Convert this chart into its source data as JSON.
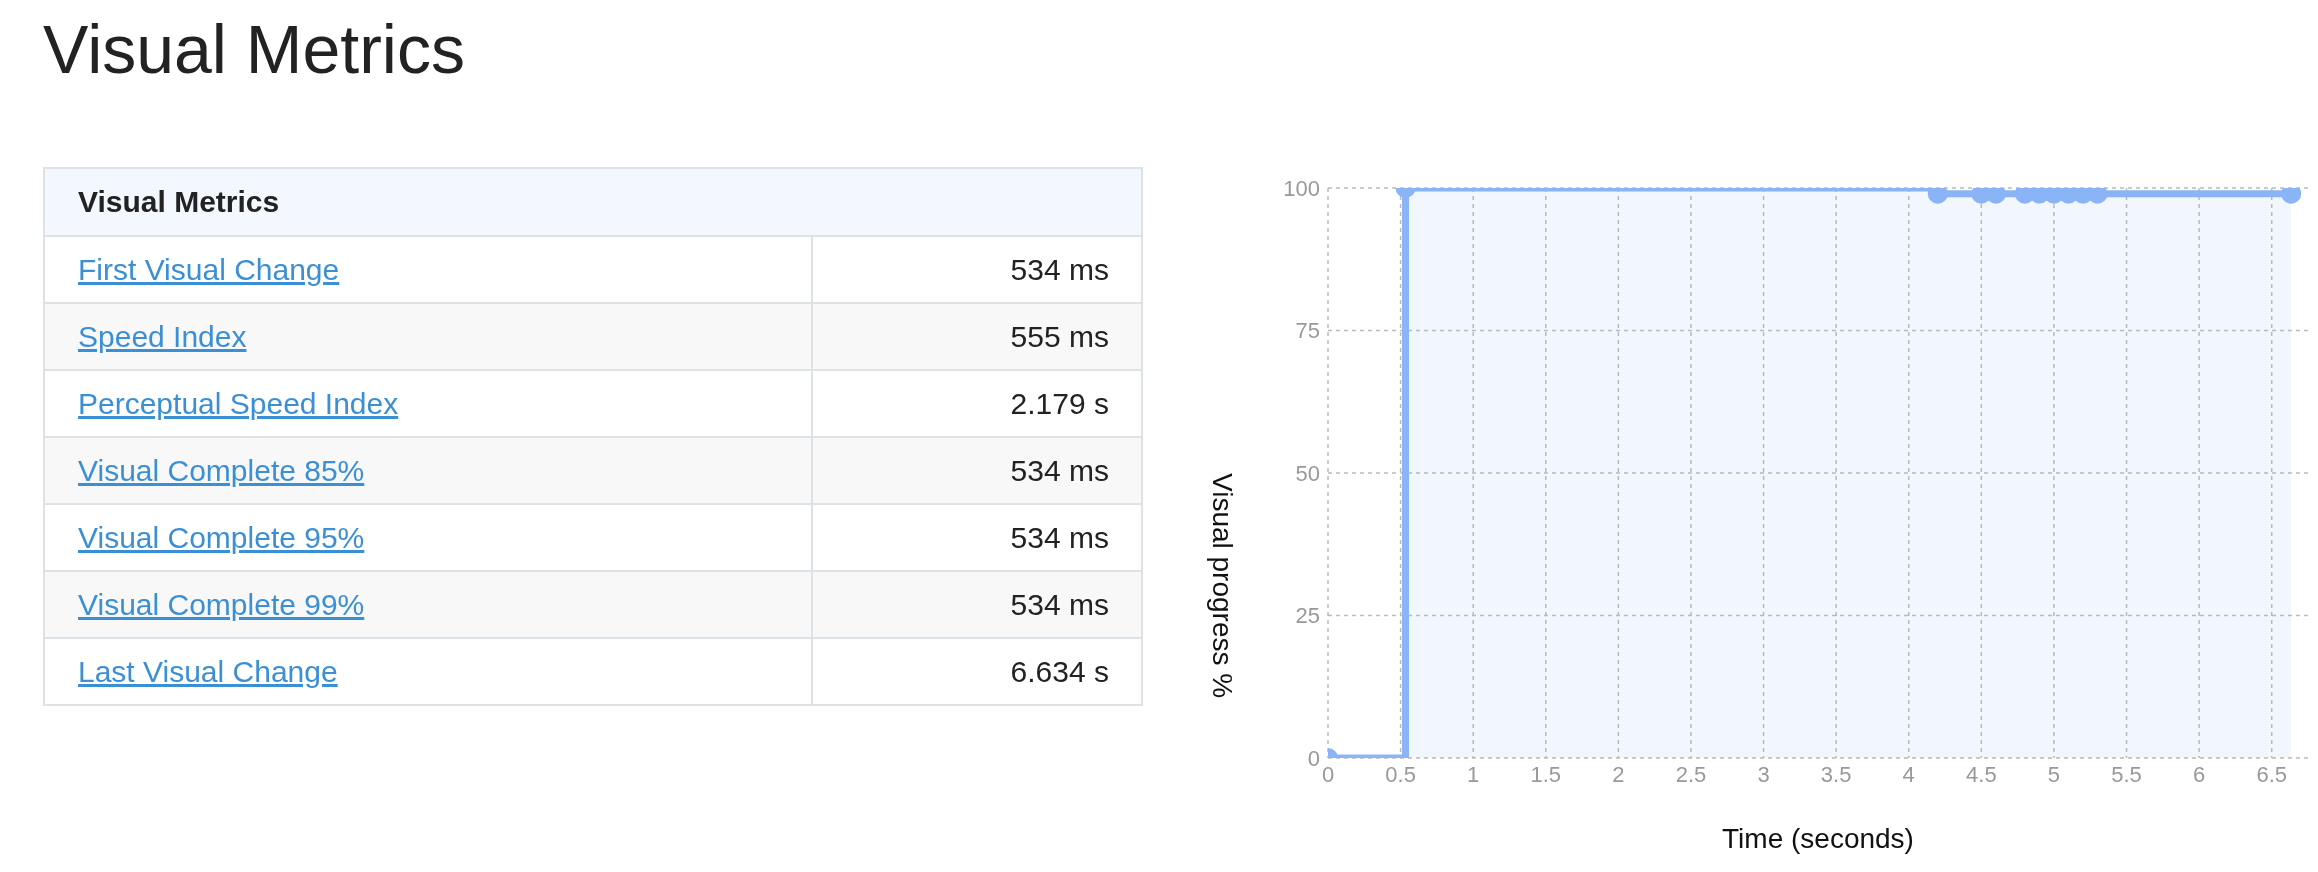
{
  "chart_data": [
    {
      "type": "other",
      "title": "Visual Metrics",
      "subtitle": "Visual Metrics",
      "annotations": [
        "First Visual Change",
        "534 ms",
        "Speed Index",
        "555 ms",
        "Perceptual Speed Index",
        "2.179 s",
        "Visual Complete 85%",
        "534 ms",
        "Visual Complete 95%",
        "534 ms",
        "Visual Complete 99%",
        "534 ms",
        "Last Visual Change",
        "6.634 s"
      ]
    },
    {
      "type": "step",
      "xlabel": "Time (seconds)",
      "ylabel": "Visual progress %",
      "series": [
        {
          "color": "#8ab4f5",
          "x": [
            0,
            0.534,
            4.2,
            4.5,
            4.6,
            4.8,
            4.9,
            5.0,
            5.1,
            5.2,
            5.3,
            6.634
          ],
          "values": [
            0,
            100,
            99,
            99,
            99,
            99,
            99,
            99,
            99,
            99,
            99,
            99
          ]
        }
      ],
      "xlim": [
        0,
        6.75
      ],
      "xticks": [
        0,
        0.5,
        1,
        1.5,
        2,
        2.5,
        3,
        3.5,
        4,
        4.5,
        5,
        5.5,
        6,
        6.5
      ],
      "ylim": [
        0,
        100
      ],
      "yticks": [
        0,
        25,
        50,
        75,
        100
      ],
      "grid": true,
      "marker": "circle",
      "line_style": "solid"
    }
  ]
}
